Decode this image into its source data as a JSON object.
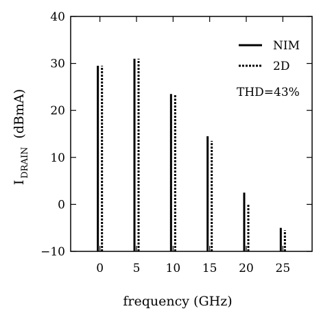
{
  "chart_data": {
    "type": "bar",
    "xlabel": "frequency (GHz)",
    "ylabel_main": "I",
    "ylabel_sub": "DRAIN",
    "ylabel_unit": "(dBmA)",
    "categories": [
      "0",
      "5",
      "10",
      "15",
      "20",
      "25"
    ],
    "x": [
      0,
      5,
      10,
      15,
      20,
      25
    ],
    "xlim": [
      -4,
      29
    ],
    "ylim": [
      -10,
      40
    ],
    "yticks": [
      -10,
      0,
      10,
      20,
      30,
      40
    ],
    "ytick_labels": [
      "−10",
      "0",
      "10",
      "20",
      "30",
      "40"
    ],
    "series": [
      {
        "name": "NIM",
        "style": "solid",
        "values": [
          29.5,
          31,
          23.5,
          14.5,
          2.5,
          -5
        ]
      },
      {
        "name": "2D",
        "style": "dashed",
        "values": [
          29.5,
          31,
          23.5,
          13.5,
          0,
          -5.5
        ]
      }
    ],
    "annotation": "THD=43%",
    "legend_position": "top-right",
    "grid": false,
    "colors": {
      "line": "#000000",
      "background": "#ffffff"
    }
  }
}
